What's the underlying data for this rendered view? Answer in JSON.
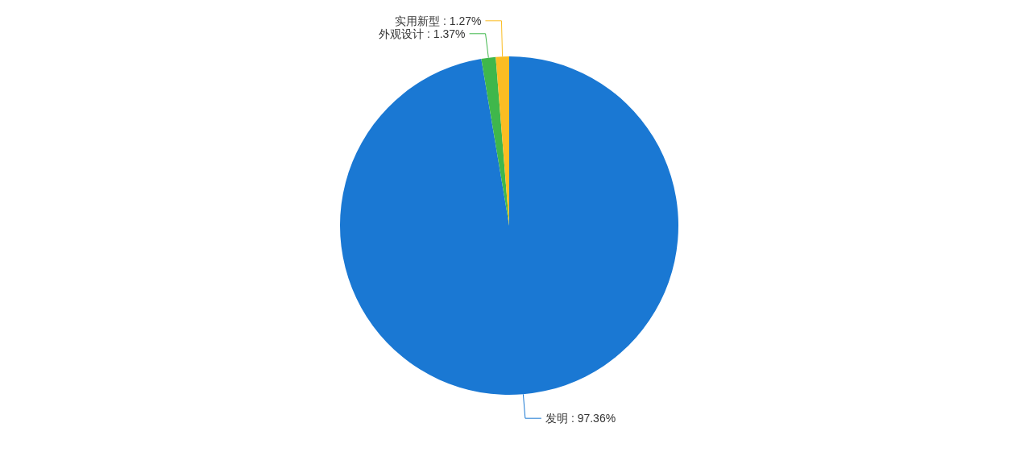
{
  "chart_data": {
    "type": "pie",
    "categories": [
      "发明",
      "外观设计",
      "实用新型"
    ],
    "values": [
      97.36,
      1.37,
      1.27
    ],
    "colors": [
      "#1a78d3",
      "#3fb74b",
      "#fbbd23"
    ],
    "value_labels": [
      ": 97.36%",
      ": 1.37%",
      ": 1.27%"
    ],
    "legend": false
  }
}
